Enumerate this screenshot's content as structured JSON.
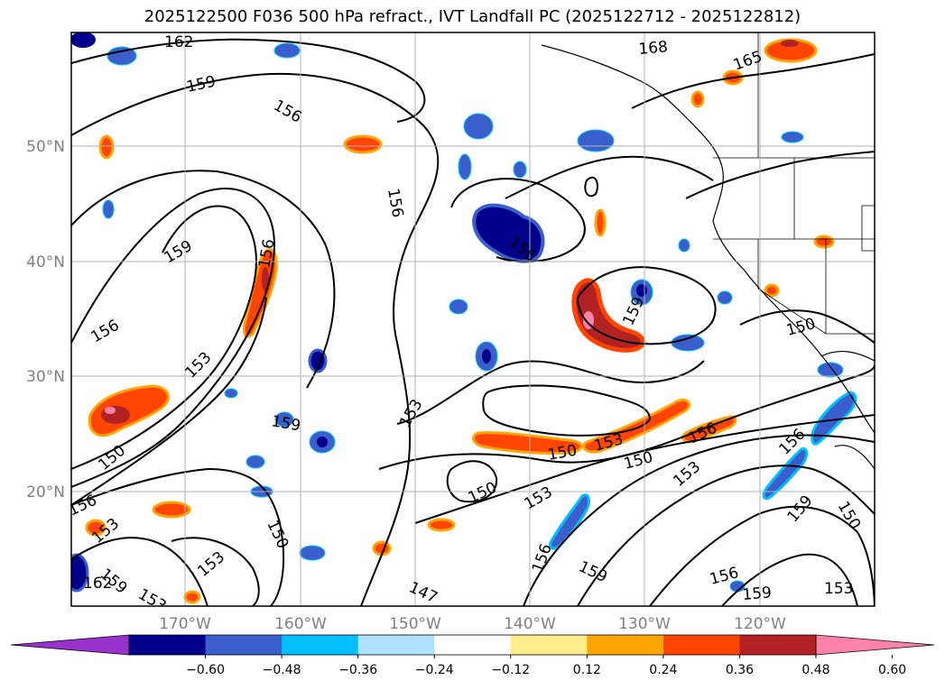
{
  "title": "2025122500 F036 500 hPa refract., IVT Landfall PC (2025122712 - 2025122812)",
  "lat_labels": [
    "50°N",
    "40°N",
    "30°N",
    "20°N"
  ],
  "lon_labels": [
    "170°W",
    "160°W",
    "150°W",
    "140°W",
    "130°W",
    "120°W"
  ],
  "colorbar": {
    "ticks": [
      "−0.60",
      "−0.48",
      "−0.36",
      "−0.24",
      "−0.12",
      "0.12",
      "0.24",
      "0.36",
      "0.48",
      "0.60"
    ],
    "colors": [
      "#9932cc",
      "#00008b",
      "#3a5fcd",
      "#00bfff",
      "#b0e2ff",
      "#ffffff",
      "#ffec8b",
      "#ffa500",
      "#ff4500",
      "#b22222",
      "#ff82ab"
    ]
  },
  "contour_labels": [
    "162",
    "159",
    "156",
    "168",
    "165",
    "156",
    "159",
    "156",
    "156",
    "156",
    "153",
    "159",
    "150",
    "156",
    "153",
    "159",
    "162",
    "153",
    "150",
    "153",
    "147",
    "150",
    "153",
    "153",
    "159",
    "156",
    "159",
    "150",
    "150",
    "153",
    "156",
    "153",
    "156",
    "159",
    "150",
    "156",
    "159",
    "153",
    "150"
  ]
}
